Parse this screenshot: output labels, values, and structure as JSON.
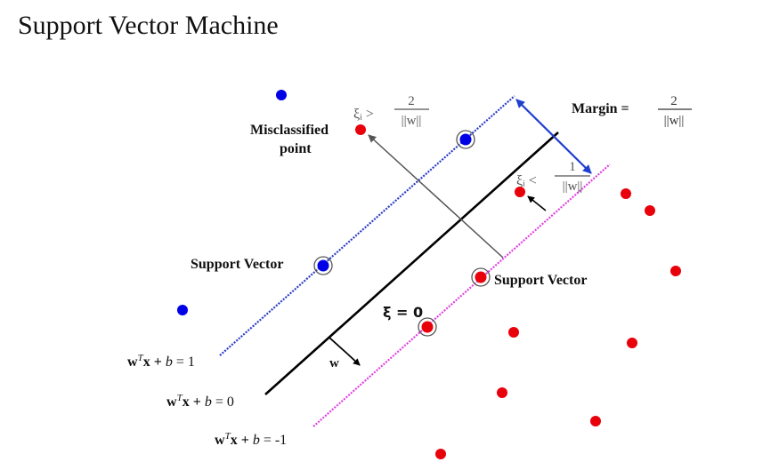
{
  "title": "Support Vector Machine",
  "labels": {
    "misclassified_line1": "Misclassified",
    "misclassified_line2": "point",
    "support_vector_left": "Support Vector",
    "support_vector_right": "Support Vector",
    "xi_zero": "ξ = 0",
    "w_vector": "w",
    "margin_word": "Margin =",
    "margin_num": "2",
    "margin_den": "||w||",
    "xi_gt_sym": "ξᵢ >",
    "xi_gt_num": "2",
    "xi_gt_den": "||w||",
    "xi_lt_sym": "ξᵢ <",
    "xi_lt_num": "1",
    "xi_lt_den": "||w||"
  },
  "equations": {
    "plus_one": {
      "w": "w",
      "t": "T",
      "x": "x + ",
      "b": "b",
      "rest": " = 1"
    },
    "zero": {
      "w": "w",
      "t": "T",
      "x": "x + ",
      "b": "b",
      "rest": " = 0"
    },
    "minus_one": {
      "w": "w",
      "t": "T",
      "x": "x + ",
      "b": "b",
      "rest": " = -1"
    }
  },
  "colors": {
    "positive_class": "#e8000b",
    "negative_class": "#0000e6",
    "plus_margin": "#2a3cc4",
    "minus_margin": "#e040e0",
    "decision_boundary": "#000000",
    "margin_arrow": "#1f3fcf"
  }
}
